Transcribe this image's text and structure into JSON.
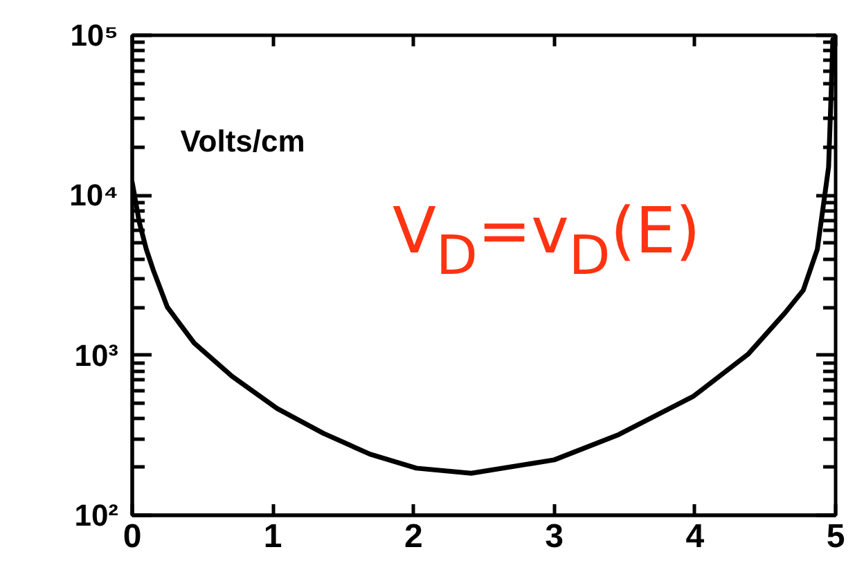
{
  "chart_data": {
    "type": "line",
    "ylabel": "Volts/cm",
    "annotations": [
      "V$_{D}$=v$_{D}$(E)"
    ],
    "x": [
      0.0,
      0.05,
      0.1,
      0.15,
      0.25,
      0.44,
      0.71,
      1.03,
      1.36,
      1.69,
      2.02,
      2.41,
      3.0,
      3.46,
      3.99,
      4.38,
      4.64,
      4.77,
      4.87,
      4.92,
      4.95,
      4.97,
      4.98
    ],
    "series": [
      {
        "color": "#000000",
        "values": [
          12030,
          6800,
          4600,
          3400,
          1997,
          1193,
          738,
          465,
          325,
          241,
          197,
          183,
          222,
          320,
          555,
          1020,
          1840,
          2550,
          4600,
          9600,
          15000,
          48000,
          94000
        ]
      }
    ],
    "xlim": [
      0,
      5
    ],
    "ylim": [
      100,
      100000
    ],
    "xticks": [
      0,
      1,
      2,
      3,
      4,
      5
    ],
    "yticks": [
      {
        "value": 100,
        "label": "10²"
      },
      {
        "value": 1000,
        "label": "10³"
      },
      {
        "value": 10000,
        "label": "10⁴"
      },
      {
        "value": 100000,
        "label": "10⁵"
      }
    ],
    "log": "y",
    "line_style": "solid"
  }
}
